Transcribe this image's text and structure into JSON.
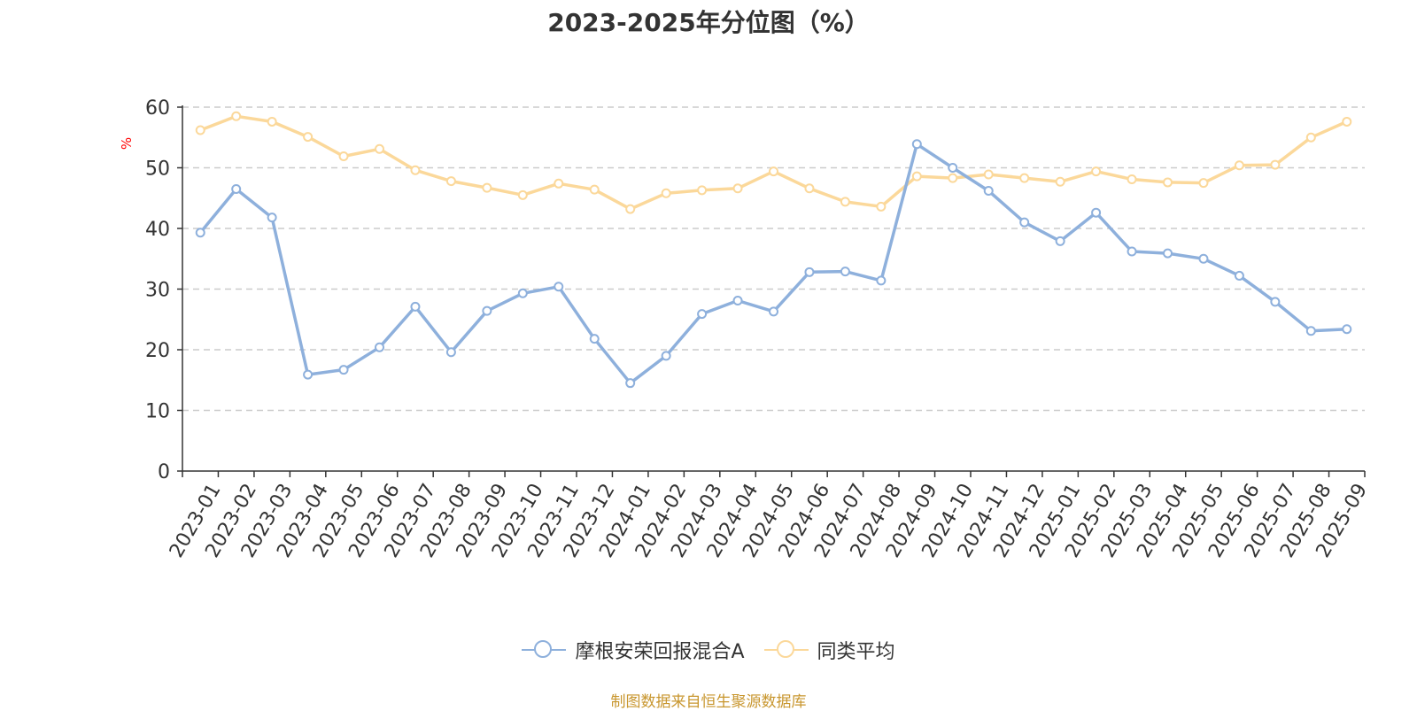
{
  "chart_data": {
    "type": "line",
    "title": "2023-2025年分位图（%）",
    "ylabel": "%",
    "xlabel": "",
    "ylim": [
      0,
      60
    ],
    "yticks": [
      0,
      10,
      20,
      30,
      40,
      50,
      60
    ],
    "grid": true,
    "legend_position": "bottom",
    "categories": [
      "2023-01",
      "2023-02",
      "2023-03",
      "2023-04",
      "2023-05",
      "2023-06",
      "2023-07",
      "2023-08",
      "2023-09",
      "2023-10",
      "2023-11",
      "2023-12",
      "2024-01",
      "2024-02",
      "2024-03",
      "2024-04",
      "2024-05",
      "2024-06",
      "2024-07",
      "2024-08",
      "2024-09",
      "2024-10",
      "2024-11",
      "2024-12",
      "2025-01",
      "2025-02",
      "2025-03",
      "2025-04",
      "2025-05",
      "2025-06",
      "2025-07",
      "2025-08",
      "2025-09"
    ],
    "series": [
      {
        "name": "摩根安荣回报混合A",
        "color": "#8eb0dc",
        "values": [
          39.3,
          46.5,
          41.8,
          15.9,
          16.7,
          20.4,
          27.1,
          19.6,
          26.4,
          29.3,
          30.4,
          21.8,
          14.5,
          19.0,
          25.9,
          28.1,
          26.3,
          32.8,
          32.9,
          31.4,
          53.9,
          50.0,
          46.2,
          41.0,
          37.9,
          42.6,
          36.2,
          35.9,
          35.0,
          32.2,
          27.9,
          23.1,
          23.4
        ]
      },
      {
        "name": "同类平均",
        "color": "#fbd89a",
        "values": [
          56.2,
          58.5,
          57.6,
          55.1,
          51.9,
          53.1,
          49.6,
          47.8,
          46.7,
          45.5,
          47.4,
          46.4,
          43.2,
          45.8,
          46.3,
          46.6,
          49.4,
          46.6,
          44.4,
          43.6,
          48.6,
          48.3,
          48.9,
          48.3,
          47.7,
          49.4,
          48.1,
          47.6,
          47.5,
          50.4,
          50.5,
          55.0,
          57.6
        ]
      }
    ]
  },
  "footer": {
    "source": "制图数据来自恒生聚源数据库"
  }
}
